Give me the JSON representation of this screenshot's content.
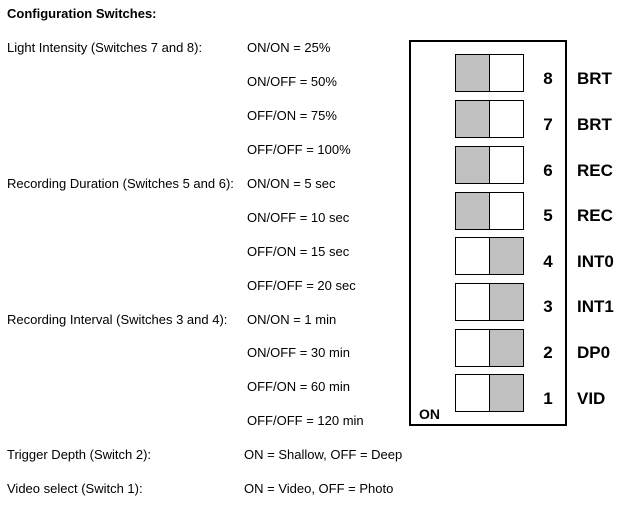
{
  "heading": "Configuration Switches:",
  "rows": [
    {
      "label": "Light Intensity (Switches 7 and 8):",
      "value": "ON/ON = 25%"
    },
    {
      "label": "",
      "value": "ON/OFF = 50%"
    },
    {
      "label": "",
      "value": "OFF/ON = 75%"
    },
    {
      "label": "",
      "value": "OFF/OFF = 100%"
    },
    {
      "label": "Recording Duration (Switches 5 and 6):",
      "value": "ON/ON = 5 sec"
    },
    {
      "label": "",
      "value": "ON/OFF = 10 sec"
    },
    {
      "label": "",
      "value": "OFF/ON = 15 sec"
    },
    {
      "label": "",
      "value": "OFF/OFF = 20 sec"
    },
    {
      "label": "Recording Interval (Switches 3 and 4):",
      "value": "ON/ON = 1 min"
    },
    {
      "label": "",
      "value": "ON/OFF = 30 min"
    },
    {
      "label": "",
      "value": "OFF/ON = 60 min"
    },
    {
      "label": "",
      "value": "OFF/OFF = 120 min"
    },
    {
      "label": "Trigger Depth (Switch 2):",
      "value": "ON = Shallow, OFF = Deep"
    },
    {
      "label": "Video select (Switch 1):",
      "value": "ON = Video, OFF = Photo"
    }
  ],
  "dip_switch": {
    "on_label": "ON",
    "fill_color": "#c0c0c0",
    "switches": [
      {
        "number": "8",
        "code": "BRT",
        "filled_side": "left"
      },
      {
        "number": "7",
        "code": "BRT",
        "filled_side": "left"
      },
      {
        "number": "6",
        "code": "REC",
        "filled_side": "left"
      },
      {
        "number": "5",
        "code": "REC",
        "filled_side": "left"
      },
      {
        "number": "4",
        "code": "INT0",
        "filled_side": "right"
      },
      {
        "number": "3",
        "code": "INT1",
        "filled_side": "right"
      },
      {
        "number": "2",
        "code": "DP0",
        "filled_side": "right"
      },
      {
        "number": "1",
        "code": "VID",
        "filled_side": "right"
      }
    ]
  }
}
